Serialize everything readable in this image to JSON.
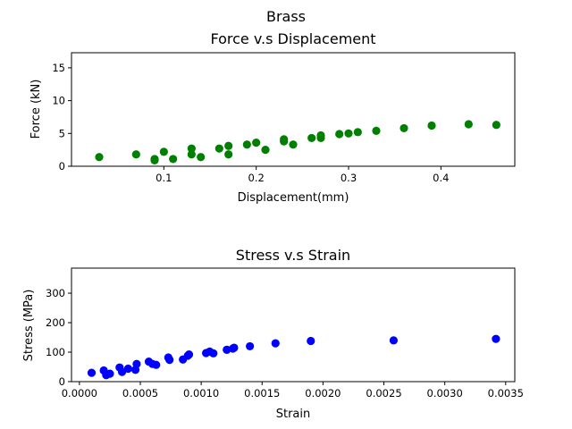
{
  "figure": {
    "suptitle": "Brass"
  },
  "chart_data": [
    {
      "type": "scatter",
      "title": "Force v.s Displacement",
      "xlabel": "Displacement(mm)",
      "ylabel": "Force (kN)",
      "xlim": [
        0.0,
        0.48
      ],
      "ylim": [
        0,
        17.3
      ],
      "xticks": [
        0.1,
        0.2,
        0.3,
        0.4
      ],
      "xtick_labels": [
        "0.1",
        "0.2",
        "0.3",
        "0.4"
      ],
      "yticks": [
        0,
        5,
        10,
        15
      ],
      "ytick_labels": [
        "0",
        "5",
        "10",
        "15"
      ],
      "grid": false,
      "series": [
        {
          "color": "#008000",
          "x": [
            0.03,
            0.07,
            0.09,
            0.09,
            0.1,
            0.11,
            0.13,
            0.13,
            0.14,
            0.16,
            0.17,
            0.17,
            0.19,
            0.2,
            0.21,
            0.23,
            0.23,
            0.24,
            0.26,
            0.27,
            0.27,
            0.29,
            0.3,
            0.31,
            0.33,
            0.36,
            0.39,
            0.43,
            0.46
          ],
          "y": [
            1.4,
            1.8,
            0.9,
            1.1,
            2.2,
            1.1,
            2.7,
            1.8,
            1.4,
            2.7,
            3.1,
            1.8,
            3.3,
            3.6,
            2.5,
            4.1,
            3.8,
            3.3,
            4.3,
            4.7,
            4.3,
            4.9,
            5.0,
            5.2,
            5.4,
            5.8,
            6.2,
            6.4,
            6.3
          ]
        }
      ]
    },
    {
      "type": "scatter",
      "title": "Stress v.s Strain",
      "xlabel": "Strain",
      "ylabel": "Stress (MPa)",
      "xlim": [
        -6.5e-05,
        0.003575
      ],
      "ylim": [
        0,
        385
      ],
      "xticks": [
        0.0,
        0.0005,
        0.001,
        0.0015,
        0.002,
        0.0025,
        0.003,
        0.0035
      ],
      "xtick_labels": [
        "0.0000",
        "0.0005",
        "0.0010",
        "0.0015",
        "0.0020",
        "0.0025",
        "0.0030",
        "0.0035"
      ],
      "yticks": [
        0,
        100,
        200,
        300
      ],
      "ytick_labels": [
        "0",
        "100",
        "200",
        "300"
      ],
      "grid": false,
      "series": [
        {
          "color": "#0000ff",
          "x": [
            0.0001,
            0.0002,
            0.00022,
            0.00025,
            0.00033,
            0.00035,
            0.0004,
            0.00046,
            0.00047,
            0.00057,
            0.0006,
            0.00063,
            0.00073,
            0.00074,
            0.00085,
            0.00089,
            0.0009,
            0.00104,
            0.00107,
            0.0011,
            0.00121,
            0.00126,
            0.00127,
            0.0014,
            0.00161,
            0.0019,
            0.00258,
            0.00342
          ],
          "y": [
            30,
            38,
            22,
            27,
            48,
            33,
            44,
            40,
            60,
            68,
            60,
            57,
            82,
            74,
            75,
            88,
            92,
            97,
            102,
            96,
            108,
            112,
            115,
            120,
            130,
            138,
            140,
            145
          ]
        }
      ]
    }
  ]
}
